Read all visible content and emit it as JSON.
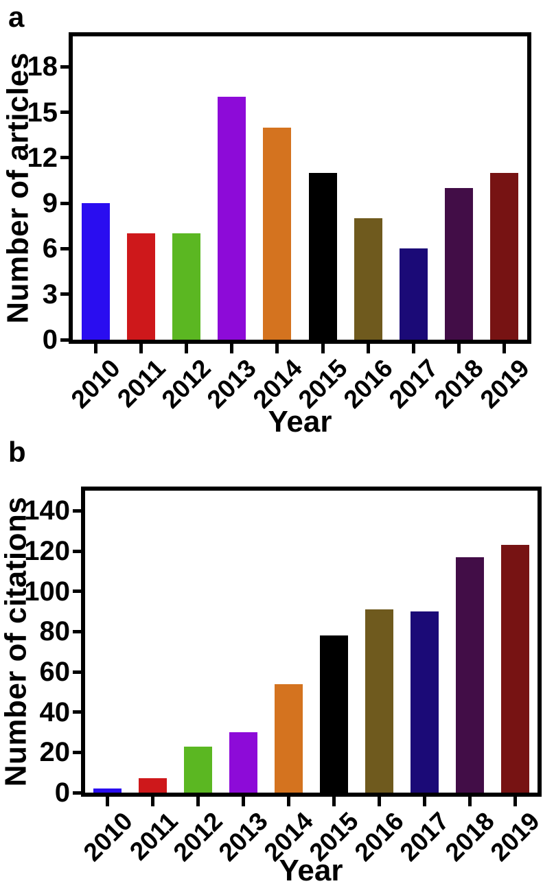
{
  "panels": {
    "a": {
      "label": "a",
      "ylabel": "Number of articles",
      "xlabel": "Year"
    },
    "b": {
      "label": "b",
      "ylabel": "Number of citations",
      "xlabel": "Year"
    }
  },
  "colors": {
    "axis": "#000000",
    "background": "#ffffff",
    "text": "#000000"
  },
  "chart_data": [
    {
      "type": "bar",
      "panel": "a",
      "title": "",
      "xlabel": "Year",
      "ylabel": "Number of articles",
      "categories": [
        "2010",
        "2011",
        "2012",
        "2013",
        "2014",
        "2015",
        "2016",
        "2017",
        "2018",
        "2019"
      ],
      "values": [
        9,
        7,
        7,
        16,
        14,
        11,
        8,
        6,
        10,
        11
      ],
      "yticks": [
        0,
        3,
        6,
        9,
        12,
        15,
        18
      ],
      "ylim": [
        0,
        20
      ],
      "grid": false,
      "legend": null,
      "bar_colors": [
        "#2a0df0",
        "#ce181b",
        "#5bb722",
        "#8d0bd8",
        "#d4731f",
        "#000000",
        "#6f5a1e",
        "#1b0a77",
        "#420d47",
        "#771313"
      ]
    },
    {
      "type": "bar",
      "panel": "b",
      "title": "",
      "xlabel": "Year",
      "ylabel": "Number of citations",
      "categories": [
        "2010",
        "2011",
        "2012",
        "2013",
        "2014",
        "2015",
        "2016",
        "2017",
        "2018",
        "2019"
      ],
      "values": [
        2,
        7,
        23,
        30,
        54,
        78,
        91,
        90,
        117,
        123
      ],
      "yticks": [
        0,
        20,
        40,
        60,
        80,
        100,
        120,
        140
      ],
      "ylim": [
        0,
        150
      ],
      "grid": false,
      "legend": null,
      "bar_colors": [
        "#2a0df0",
        "#ce181b",
        "#5bb722",
        "#8d0bd8",
        "#d4731f",
        "#000000",
        "#6f5a1e",
        "#1b0a77",
        "#420d47",
        "#771313"
      ]
    }
  ]
}
